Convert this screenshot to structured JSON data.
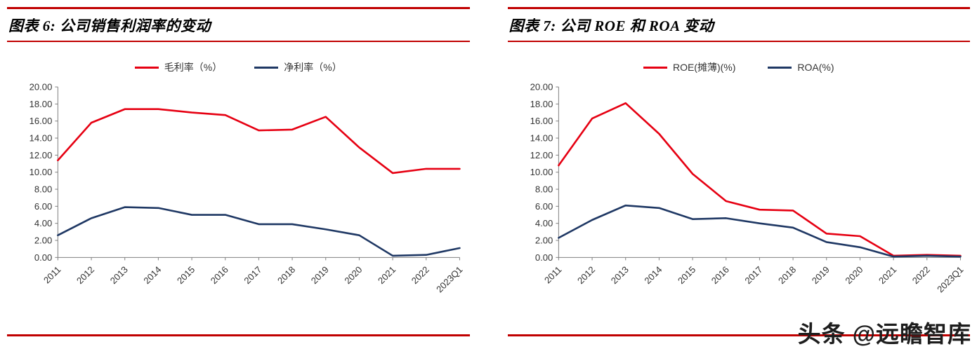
{
  "watermark": {
    "text": "头条 @远瞻智库"
  },
  "style": {
    "rule_color": "#c00000",
    "axis_color": "#808080",
    "tick_label_color": "#333333"
  },
  "chart_data": [
    {
      "type": "line",
      "title": "图表 6: 公司销售利润率的变动",
      "categories": [
        "2011",
        "2012",
        "2013",
        "2014",
        "2015",
        "2016",
        "2017",
        "2018",
        "2019",
        "2020",
        "2021",
        "2022",
        "2023Q1"
      ],
      "ylim": [
        0,
        20
      ],
      "ytick_step": 2,
      "grid": false,
      "legend_position": "top",
      "xlabel": "",
      "ylabel": "",
      "series": [
        {
          "name": "毛利率（%）",
          "color": "#e60012",
          "values": [
            11.4,
            15.8,
            17.4,
            17.4,
            17.0,
            16.7,
            14.9,
            15.0,
            16.5,
            12.9,
            9.9,
            10.4,
            10.4
          ]
        },
        {
          "name": "净利率（%）",
          "color": "#1f3864",
          "values": [
            2.6,
            4.6,
            5.9,
            5.8,
            5.0,
            5.0,
            3.9,
            3.9,
            3.3,
            2.6,
            0.2,
            0.3,
            1.1
          ]
        }
      ]
    },
    {
      "type": "line",
      "title": "图表 7: 公司 ROE 和 ROA 变动",
      "categories": [
        "2011",
        "2012",
        "2013",
        "2014",
        "2015",
        "2016",
        "2017",
        "2018",
        "2019",
        "2020",
        "2021",
        "2022",
        "2023Q1"
      ],
      "ylim": [
        0,
        20
      ],
      "ytick_step": 2,
      "grid": false,
      "legend_position": "top",
      "xlabel": "",
      "ylabel": "",
      "series": [
        {
          "name": "ROE(摊薄)(%)",
          "color": "#e60012",
          "values": [
            10.8,
            16.3,
            18.1,
            14.5,
            9.8,
            6.6,
            5.6,
            5.5,
            2.8,
            2.5,
            0.2,
            0.3,
            0.2
          ]
        },
        {
          "name": "ROA(%)",
          "color": "#1f3864",
          "values": [
            2.3,
            4.4,
            6.1,
            5.8,
            4.5,
            4.6,
            4.0,
            3.5,
            1.8,
            1.2,
            0.1,
            0.2,
            0.1
          ]
        }
      ]
    }
  ]
}
